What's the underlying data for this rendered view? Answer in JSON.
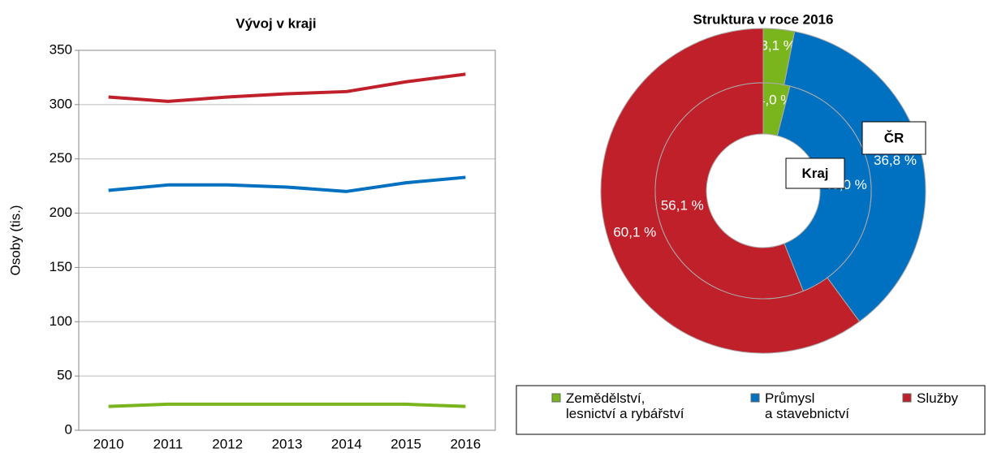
{
  "chart_data": [
    {
      "type": "line",
      "title": "Vývoj v kraji",
      "y_label": "Osoby (tis.)",
      "categories": [
        "2010",
        "2011",
        "2012",
        "2013",
        "2014",
        "2015",
        "2016"
      ],
      "series": [
        {
          "color": "#c0202a",
          "values": [
            307,
            303,
            307,
            310,
            312,
            321,
            328
          ]
        },
        {
          "color": "#0070c0",
          "values": [
            221,
            226,
            226,
            224,
            220,
            228,
            233
          ]
        },
        {
          "color": "#7ab51d",
          "values": [
            22,
            24,
            24,
            24,
            24,
            24,
            22
          ]
        }
      ],
      "ylim": [
        0,
        350
      ],
      "yticks": [
        0,
        50,
        100,
        150,
        200,
        250,
        300,
        350
      ],
      "grid": true
    },
    {
      "type": "pie",
      "title": "Struktura v roce 2016",
      "categories": [
        "Zemědělství,\nlesnictví a rybářství",
        "Průmysl\na stavebnictví",
        "Služby"
      ],
      "colors": [
        "#7ab51d",
        "#0070c0",
        "#c0202a"
      ],
      "series": [
        {
          "name": "ČR",
          "values": [
            3.1,
            36.8,
            60.1
          ],
          "value_labels": [
            "3,1 %",
            "36,8 %",
            "60,1 %"
          ]
        },
        {
          "name": "Kraj",
          "values": [
            4.0,
            40.0,
            56.1
          ],
          "value_labels": [
            "4,0 %",
            "40,0 %",
            "56,1 %"
          ]
        }
      ]
    }
  ]
}
